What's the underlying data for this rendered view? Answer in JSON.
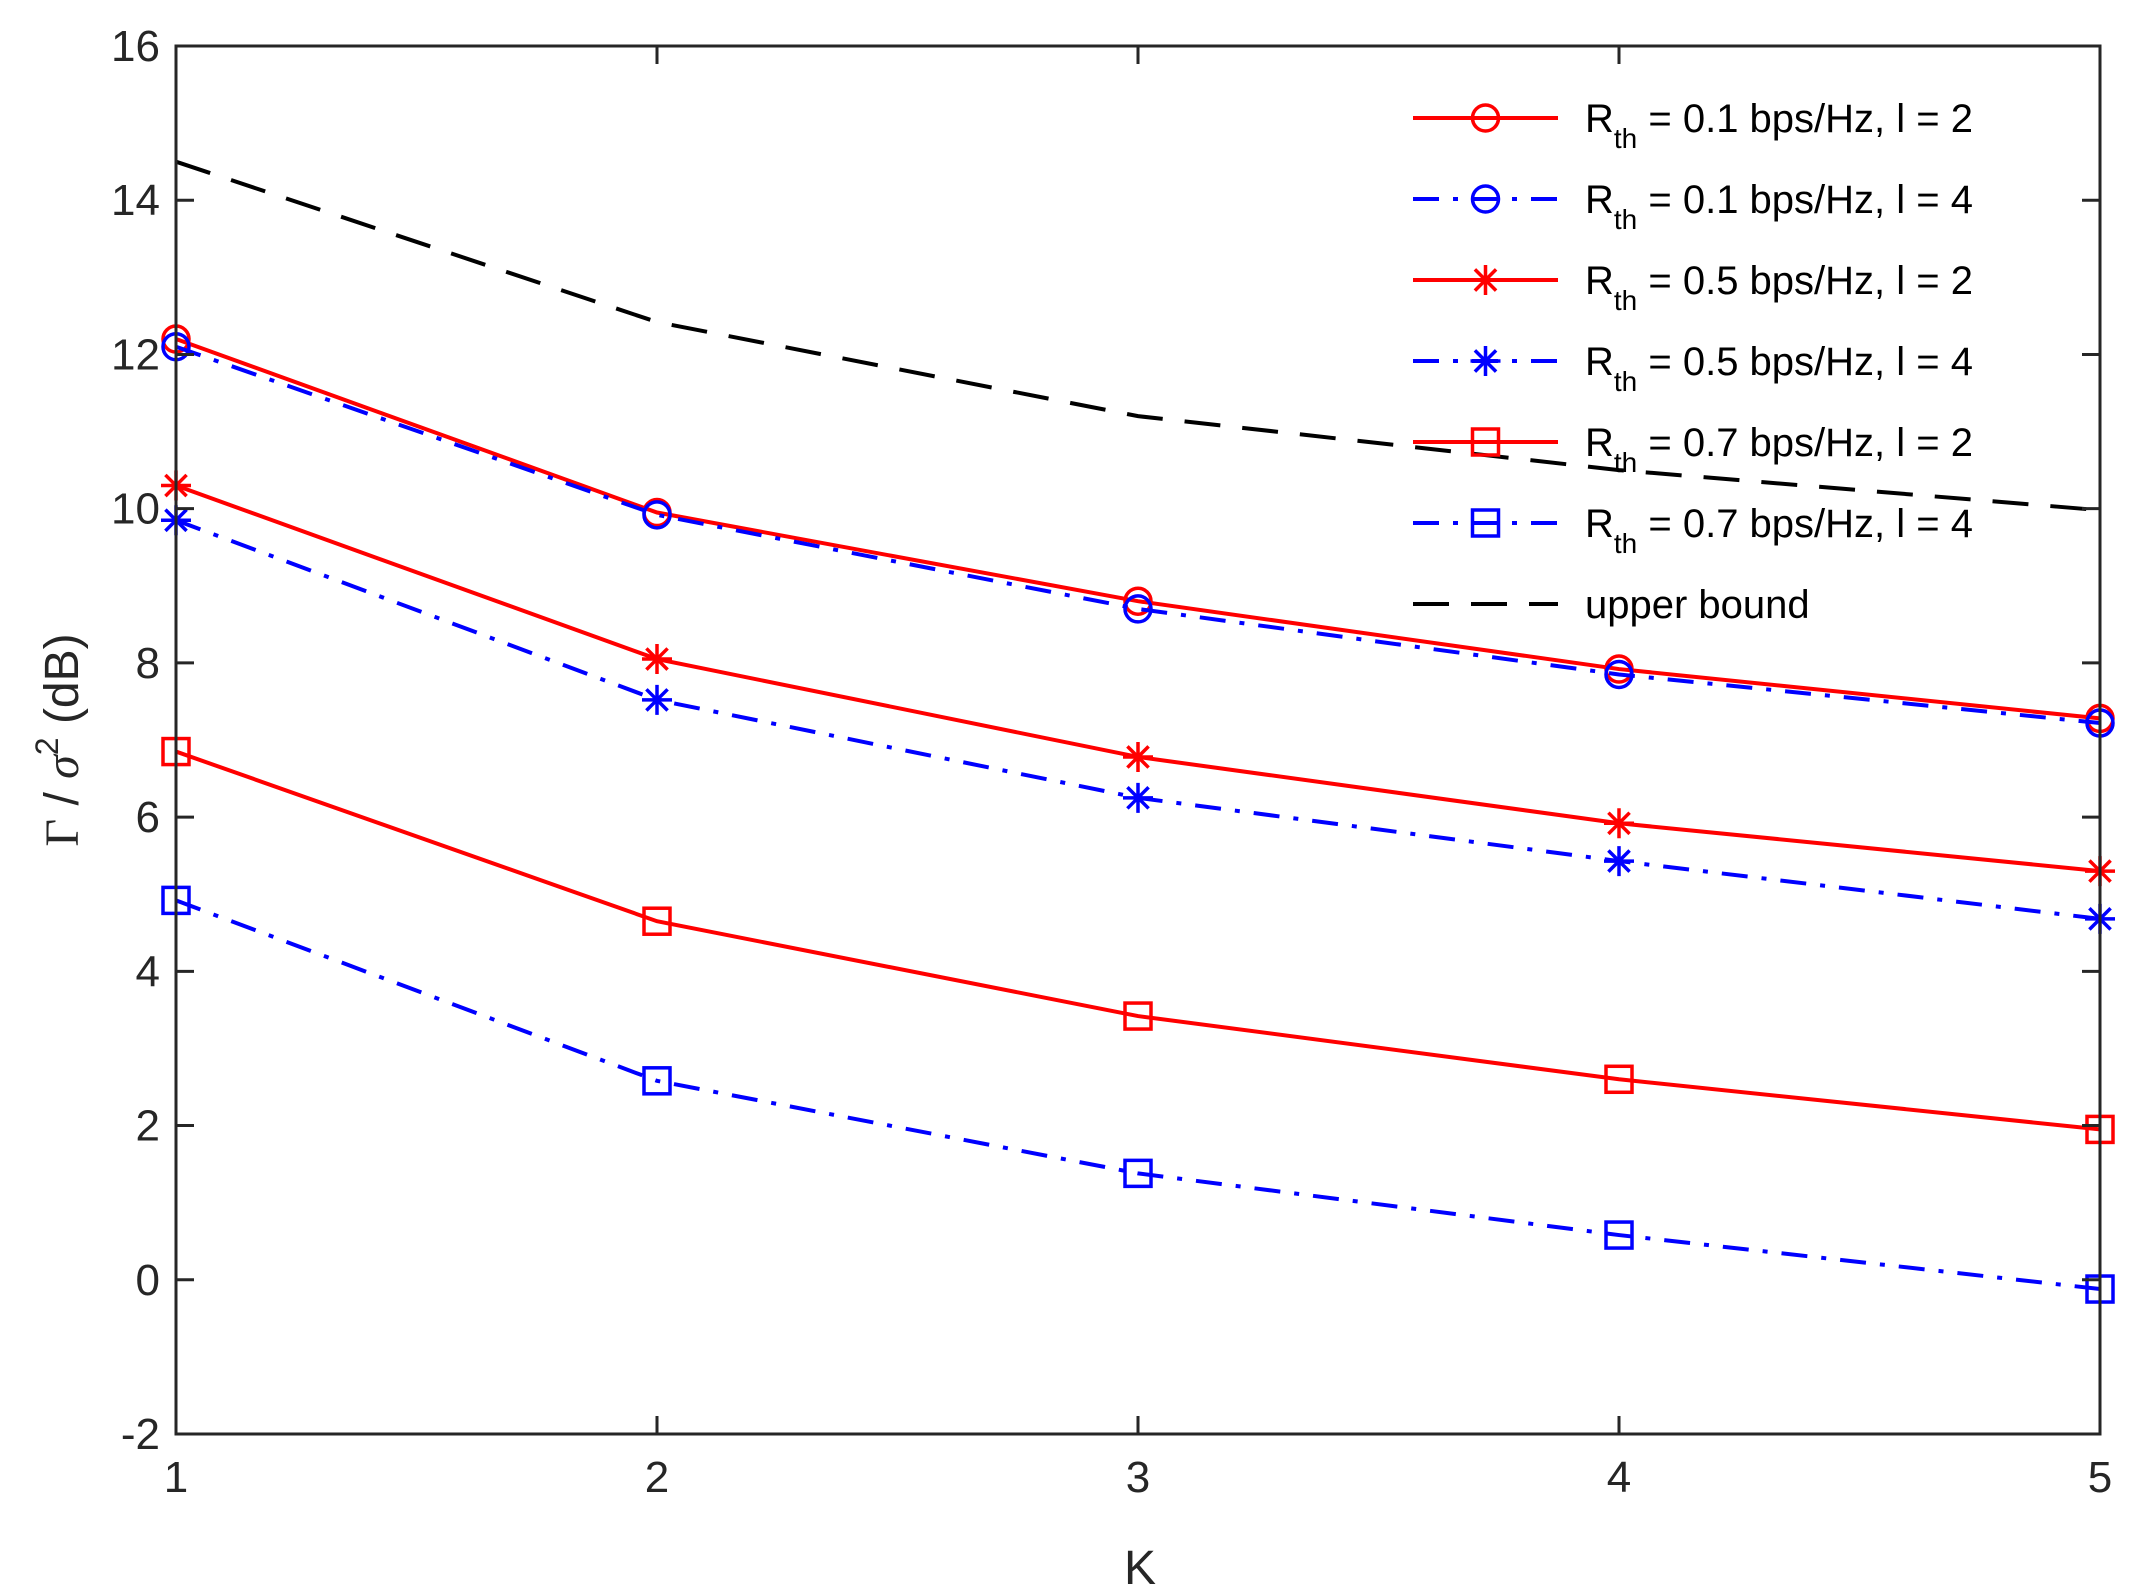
{
  "chart_data": {
    "type": "line",
    "title": "",
    "xlabel": "K",
    "ylabel": {
      "gamma": "Γ",
      "slash": " / ",
      "sigma": "σ",
      "power": "2",
      "unit": " (dB)"
    },
    "xlim": [
      1,
      5
    ],
    "ylim": [
      -2,
      16
    ],
    "x": [
      1,
      2,
      3,
      4,
      5
    ],
    "xticks": [
      "1",
      "2",
      "3",
      "4",
      "5"
    ],
    "yticks": [
      "-2",
      "0",
      "2",
      "4",
      "6",
      "8",
      "10",
      "12",
      "14",
      "16"
    ],
    "grid": false,
    "legend_position": "top-right",
    "series": [
      {
        "name": "R_th = 0.1 bps/Hz, l = 2",
        "legend": {
          "base": "R",
          "sub": "th",
          "rest": " = 0.1 bps/Hz, l = 2"
        },
        "color": "#ff0000",
        "linestyle": "solid",
        "marker": "circle",
        "values": [
          12.2,
          9.95,
          8.8,
          7.92,
          7.28
        ]
      },
      {
        "name": "R_th = 0.1 bps/Hz, l = 4",
        "legend": {
          "base": "R",
          "sub": "th",
          "rest": " = 0.1 bps/Hz, l = 4"
        },
        "color": "#0000ff",
        "linestyle": "dashdot",
        "marker": "circle",
        "values": [
          12.1,
          9.92,
          8.7,
          7.85,
          7.22
        ]
      },
      {
        "name": "R_th = 0.5 bps/Hz, l = 2",
        "legend": {
          "base": "R",
          "sub": "th",
          "rest": " = 0.5 bps/Hz, l = 2"
        },
        "color": "#ff0000",
        "linestyle": "solid",
        "marker": "asterisk",
        "values": [
          10.3,
          8.05,
          6.78,
          5.92,
          5.3
        ]
      },
      {
        "name": "R_th = 0.5 bps/Hz, l = 4",
        "legend": {
          "base": "R",
          "sub": "th",
          "rest": " = 0.5 bps/Hz, l = 4"
        },
        "color": "#0000ff",
        "linestyle": "dashdot",
        "marker": "asterisk",
        "values": [
          9.85,
          7.52,
          6.25,
          5.43,
          4.68
        ]
      },
      {
        "name": "R_th = 0.7 bps/Hz, l = 2",
        "legend": {
          "base": "R",
          "sub": "th",
          "rest": " = 0.7 bps/Hz, l = 2"
        },
        "color": "#ff0000",
        "linestyle": "solid",
        "marker": "square",
        "values": [
          6.85,
          4.65,
          3.42,
          2.6,
          1.95
        ]
      },
      {
        "name": "R_th = 0.7 bps/Hz, l = 4",
        "legend": {
          "base": "R",
          "sub": "th",
          "rest": " = 0.7 bps/Hz, l = 4"
        },
        "color": "#0000ff",
        "linestyle": "dashdot",
        "marker": "square",
        "values": [
          4.92,
          2.58,
          1.38,
          0.58,
          -0.12
        ]
      },
      {
        "name": "upper bound",
        "legend": {
          "base": "upper bound",
          "sub": "",
          "rest": ""
        },
        "color": "#000000",
        "linestyle": "dashed",
        "marker": "none",
        "values": [
          14.5,
          12.42,
          11.2,
          10.5,
          9.98
        ]
      }
    ]
  }
}
